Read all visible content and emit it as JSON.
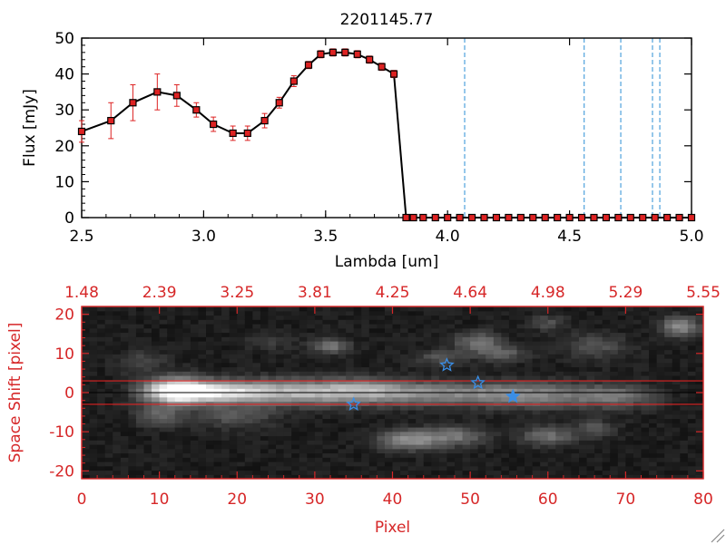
{
  "chart_data": [
    {
      "type": "line",
      "title": "2201145.77",
      "xlabel": "Lambda [um]",
      "ylabel": "Flux [mJy]",
      "xlim": [
        2.5,
        5.0
      ],
      "ylim": [
        0,
        50
      ],
      "xticks": [
        "2.5",
        "3.0",
        "3.5",
        "4.0",
        "4.5",
        "5.0"
      ],
      "yticks": [
        "0",
        "10",
        "20",
        "30",
        "40",
        "50"
      ],
      "series": [
        {
          "name": "flux",
          "x": [
            2.5,
            2.62,
            2.71,
            2.81,
            2.89,
            2.97,
            3.04,
            3.12,
            3.18,
            3.25,
            3.31,
            3.37,
            3.43,
            3.48,
            3.53,
            3.58,
            3.63,
            3.68,
            3.73,
            3.78,
            3.83,
            3.86,
            3.9,
            3.95,
            4.0,
            4.05,
            4.1,
            4.15,
            4.2,
            4.25,
            4.3,
            4.35,
            4.4,
            4.45,
            4.5,
            4.55,
            4.6,
            4.65,
            4.7,
            4.75,
            4.8,
            4.85,
            4.9,
            4.95,
            5.0
          ],
          "y": [
            24,
            27,
            32,
            35,
            34,
            30,
            26,
            23.5,
            23.5,
            27,
            32,
            38,
            42.5,
            45.5,
            46,
            46,
            45.5,
            44,
            42,
            40,
            0,
            0,
            0,
            0,
            0,
            0,
            0,
            0,
            0,
            0,
            0,
            0,
            0,
            0,
            0,
            0,
            0,
            0,
            0,
            0,
            0,
            0,
            0,
            0,
            0
          ],
          "yerr": [
            3,
            5,
            5,
            5,
            3,
            2,
            2,
            2,
            2,
            2,
            1.5,
            1.5,
            1,
            1,
            1,
            1,
            1,
            1,
            1,
            1,
            0,
            0,
            0,
            0,
            0,
            0,
            0,
            0,
            0,
            0,
            0,
            0,
            0,
            0,
            0,
            0,
            0,
            0,
            0,
            0,
            0,
            0,
            0,
            0,
            0
          ]
        }
      ],
      "vlines": [
        4.07,
        4.56,
        4.71,
        4.84,
        4.87
      ]
    },
    {
      "type": "heatmap",
      "xlabel": "Pixel",
      "ylabel": "Space Shift [pixel]",
      "xlim": [
        0,
        80
      ],
      "ylim": [
        -22,
        22
      ],
      "xticks": [
        "0",
        "10",
        "20",
        "30",
        "40",
        "50",
        "60",
        "70",
        "80"
      ],
      "yticks": [
        "-20",
        "-10",
        "0",
        "10",
        "20"
      ],
      "top_axis_ticks": [
        "1.48",
        "2.39",
        "3.25",
        "3.81",
        "4.25",
        "4.64",
        "4.98",
        "5.29",
        "5.55"
      ],
      "aperture_lines": [
        3,
        -3
      ],
      "markers": [
        {
          "x": 47,
          "y": 7,
          "filled": false
        },
        {
          "x": 51,
          "y": 2.5,
          "filled": false
        },
        {
          "x": 35,
          "y": -3,
          "filled": false
        },
        {
          "x": 55.5,
          "y": -1,
          "filled": true
        }
      ]
    }
  ],
  "colors": {
    "accent_red": "#d62728",
    "data_red": "#dd2222",
    "vline_blue": "#2c8fd6",
    "star_blue": "#3a8ee6"
  }
}
